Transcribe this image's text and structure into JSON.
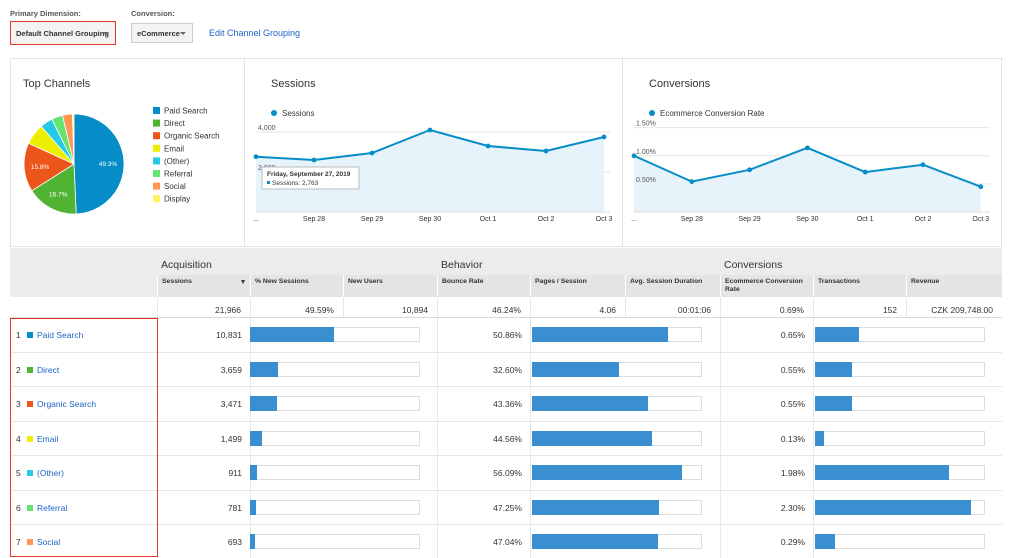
{
  "controls": {
    "primary_dimension_label": "Primary Dimension:",
    "primary_dimension": "Default Channel Grouping",
    "conversion_label": "Conversion:",
    "conversion": "eCommerce",
    "edit_link": "Edit Channel Grouping"
  },
  "chart_data": [
    {
      "type": "pie",
      "title": "Top Channels",
      "categories": [
        "Paid Search",
        "Direct",
        "Organic Search",
        "Email",
        "(Other)",
        "Referral",
        "Social",
        "Display"
      ],
      "values": [
        49.3,
        16.7,
        15.8,
        6.8,
        4.1,
        3.6,
        3.2,
        0.5
      ],
      "value_labels": [
        "49.3%",
        "16.7%",
        "15.8%",
        null,
        null,
        null,
        null,
        null
      ],
      "colors": [
        "#058dc7",
        "#50b432",
        "#ed561b",
        "#edef00",
        "#24cbe5",
        "#64e572",
        "#ff9655",
        "#fff263"
      ]
    },
    {
      "type": "line",
      "title": "Sessions",
      "x": [
        "...",
        "Sep 28",
        "Sep 29",
        "Sep 30",
        "Oct 1",
        "Oct 2",
        "Oct 3"
      ],
      "series": [
        {
          "name": "Sessions",
          "color": "#058dc7",
          "values": [
            2763,
            2600,
            2950,
            4100,
            3300,
            3050,
            3750
          ]
        }
      ],
      "ylim": [
        0,
        4500
      ],
      "yticks": [
        {
          "value": 4000,
          "label": "4,000"
        },
        {
          "value": 2000,
          "label": "2,000"
        }
      ],
      "grid": true,
      "tooltip": {
        "title": "Friday, September 27, 2019",
        "text": "Sessions: 2,763"
      }
    },
    {
      "type": "line",
      "title": "Conversions",
      "x": [
        "...",
        "Sep 28",
        "Sep 29",
        "Sep 30",
        "Oct 1",
        "Oct 2",
        "Oct 3"
      ],
      "series": [
        {
          "name": "Ecommerce Conversion Rate",
          "color": "#058dc7",
          "values": [
            1.0,
            0.54,
            0.75,
            1.14,
            0.71,
            0.84,
            0.45
          ]
        }
      ],
      "ylim": [
        0,
        1.6
      ],
      "yticks": [
        {
          "value": 1.5,
          "label": "1.50%"
        },
        {
          "value": 1.0,
          "label": "1.00%"
        },
        {
          "value": 0.5,
          "label": "0.50%"
        }
      ],
      "grid": true
    }
  ],
  "table": {
    "group_headers": [
      "Acquisition",
      "Behavior",
      "Conversions"
    ],
    "columns": [
      "Sessions",
      "% New Sessions",
      "New Users",
      "Bounce Rate",
      "Pages / Session",
      "Avg. Session Duration",
      "Ecommerce Conversion Rate",
      "Transactions",
      "Revenue"
    ],
    "totals": [
      "21,966",
      "49.59%",
      "10,894",
      "46.24%",
      "4.06",
      "00:01:06",
      "0.69%",
      "152",
      "CZK 209,748.00"
    ],
    "rows": [
      {
        "rank": 1,
        "name": "Paid Search",
        "color": "#058dc7",
        "sessions": "10,831",
        "bounce_rate": "50.86%",
        "conversion_rate": "0.65%"
      },
      {
        "rank": 2,
        "name": "Direct",
        "color": "#50b432",
        "sessions": "3,659",
        "bounce_rate": "32.60%",
        "conversion_rate": "0.55%"
      },
      {
        "rank": 3,
        "name": "Organic Search",
        "color": "#ed561b",
        "sessions": "3,471",
        "bounce_rate": "43.36%",
        "conversion_rate": "0.55%"
      },
      {
        "rank": 4,
        "name": "Email",
        "color": "#edef00",
        "sessions": "1,499",
        "bounce_rate": "44.56%",
        "conversion_rate": "0.13%"
      },
      {
        "rank": 5,
        "name": "(Other)",
        "color": "#24cbe5",
        "sessions": "911",
        "bounce_rate": "56.09%",
        "conversion_rate": "1.98%"
      },
      {
        "rank": 6,
        "name": "Referral",
        "color": "#64e572",
        "sessions": "781",
        "bounce_rate": "47.25%",
        "conversion_rate": "2.30%"
      },
      {
        "rank": 7,
        "name": "Social",
        "color": "#ff9655",
        "sessions": "693",
        "bounce_rate": "47.04%",
        "conversion_rate": "0.29%"
      }
    ]
  }
}
